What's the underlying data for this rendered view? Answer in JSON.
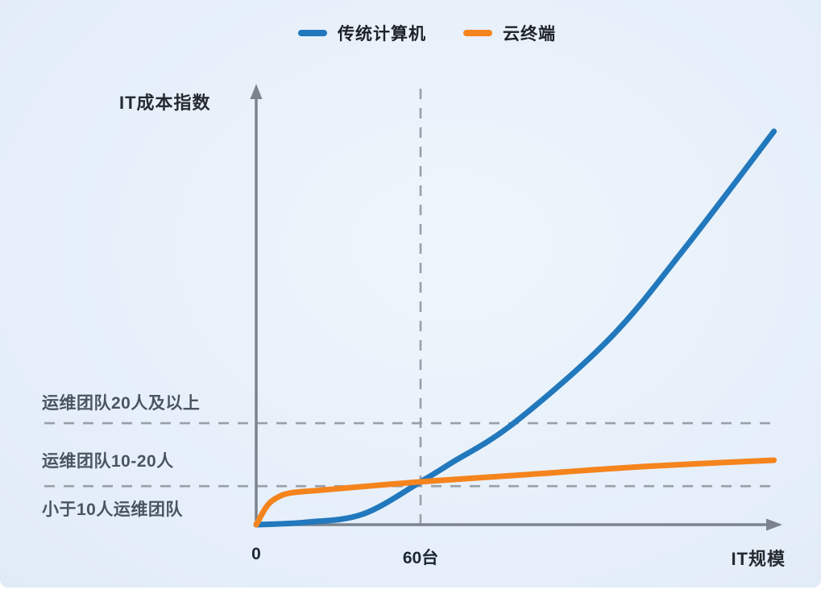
{
  "legend": {
    "items": [
      {
        "label": "传统计算机",
        "color": "#2278bc"
      },
      {
        "label": "云终端",
        "color": "#f5841d"
      }
    ]
  },
  "chart_data": {
    "type": "line",
    "title": "",
    "xlabel": "IT规模",
    "ylabel": "IT成本指数",
    "x_unit": "台",
    "xlim": [
      0,
      192
    ],
    "ylim": [
      0,
      112
    ],
    "grid": false,
    "legend_position": "top-center",
    "x_ticks": [
      {
        "value": 0,
        "label": "0"
      },
      {
        "value": 60,
        "label": "60台"
      }
    ],
    "series": [
      {
        "name": "传统计算机",
        "color": "#2278bc",
        "points": [
          [
            0,
            0
          ],
          [
            18,
            0.6
          ],
          [
            39,
            2.7
          ],
          [
            60,
            10.9
          ],
          [
            71,
            15.6
          ],
          [
            94,
            25.8
          ],
          [
            129,
            47.3
          ],
          [
            156,
            69.9
          ],
          [
            189,
            100
          ]
        ]
      },
      {
        "name": "云终端",
        "color": "#f5841d",
        "points": [
          [
            0,
            0
          ],
          [
            3.5,
            4.3
          ],
          [
            6.5,
            6.4
          ],
          [
            12,
            8.0
          ],
          [
            24,
            8.8
          ],
          [
            60,
            10.9
          ],
          [
            98,
            12.7
          ],
          [
            142,
            14.8
          ],
          [
            189,
            16.4
          ]
        ]
      }
    ],
    "guides": {
      "horizontal": [
        {
          "y": 25.8
        },
        {
          "y": 9.8
        }
      ],
      "vertical": [
        {
          "x": 60,
          "y_top": 112
        }
      ]
    },
    "band_labels": [
      {
        "text": "运维团队20人及以上"
      },
      {
        "text": "运维团队10-20人"
      },
      {
        "text": "小于10人运维团队"
      }
    ],
    "colors": {
      "axis": "#7b838e",
      "guide": "#999fa8",
      "background": "#e7f0fa"
    }
  }
}
